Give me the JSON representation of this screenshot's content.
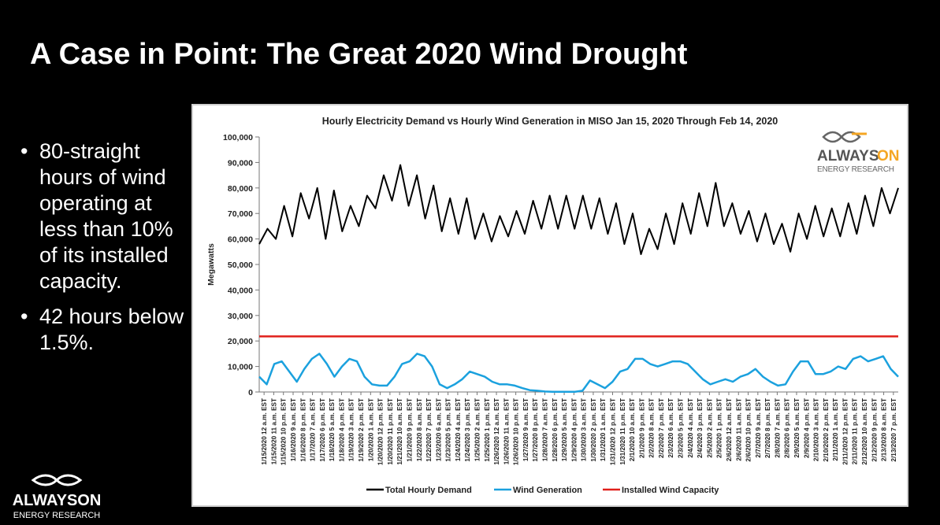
{
  "slide": {
    "title": "A Case in Point: The Great 2020 Wind Drought",
    "bullets": [
      "80-straight hours of wind operating at less than 10% of its installed capacity.",
      "42 hours below 1.5%."
    ]
  },
  "logo": {
    "name": "ALWAYSON",
    "name_left": "ALWAYS",
    "name_right": "ON",
    "subtitle": "ENERGY RESEARCH",
    "accent_color": "#f5a623"
  },
  "chart_data": {
    "type": "line",
    "title": "Hourly Electricity Demand vs Hourly Wind Generation in MISO Jan 15, 2020 Through Feb 14, 2020",
    "ylabel": "Megawatts",
    "xlabel": "",
    "ylim": [
      0,
      100000
    ],
    "y_ticks": [
      "0",
      "10,000",
      "20,000",
      "30,000",
      "40,000",
      "50,000",
      "60,000",
      "70,000",
      "80,000",
      "90,000",
      "100,000"
    ],
    "x_tick_labels": [
      "1/15/2020 12 a.m. EST",
      "1/15/2020 11 a.m. EST",
      "1/15/2020 10 p.m. EST",
      "1/16/2020 9 a.m. EST",
      "1/16/2020 8 p.m. EST",
      "1/17/2020 7 a.m. EST",
      "1/17/2020 6 p.m. EST",
      "1/18/2020 5 a.m. EST",
      "1/18/2020 4 p.m. EST",
      "1/19/2020 3 a.m. EST",
      "1/19/2020 2 p.m. EST",
      "1/20/2020 1 a.m. EST",
      "1/20/2020 12 p.m. EST",
      "1/20/2020 11 p.m. EST",
      "1/21/2020 10 a.m. EST",
      "1/21/2020 9 p.m. EST",
      "1/22/2020 8 a.m. EST",
      "1/22/2020 7 p.m. EST",
      "1/23/2020 6 a.m. EST",
      "1/23/2020 5 p.m. EST",
      "1/24/2020 4 a.m. EST",
      "1/24/2020 3 p.m. EST",
      "1/25/2020 2 a.m. EST",
      "1/25/2020 1 p.m. EST",
      "1/26/2020 12 a.m. EST",
      "1/26/2020 11 a.m. EST",
      "1/26/2020 10 p.m. EST",
      "1/27/2020 9 a.m. EST",
      "1/27/2020 8 p.m. EST",
      "1/28/2020 7 a.m. EST",
      "1/28/2020 6 p.m. EST",
      "1/29/2020 5 a.m. EST",
      "1/29/2020 4 p.m. EST",
      "1/30/2020 3 a.m. EST",
      "1/30/2020 2 p.m. EST",
      "1/31/2020 1 a.m. EST",
      "1/31/2020 12 p.m. EST",
      "1/31/2020 11 p.m. EST",
      "2/1/2020 10 a.m. EST",
      "2/1/2020 9 p.m. EST",
      "2/2/2020 8 a.m. EST",
      "2/2/2020 7 p.m. EST",
      "2/3/2020 6 a.m. EST",
      "2/3/2020 5 p.m. EST",
      "2/4/2020 4 a.m. EST",
      "2/4/2020 3 p.m. EST",
      "2/5/2020 2 a.m. EST",
      "2/5/2020 1 p.m. EST",
      "2/6/2020 12 a.m. EST",
      "2/6/2020 11 a.m. EST",
      "2/6/2020 10 p.m. EST",
      "2/7/2020 9 a.m. EST",
      "2/7/2020 8 p.m. EST",
      "2/8/2020 7 a.m. EST",
      "2/8/2020 6 p.m. EST",
      "2/9/2020 5 a.m. EST",
      "2/9/2020 4 p.m. EST",
      "2/10/2020 3 a.m. EST",
      "2/10/2020 2 p.m. EST",
      "2/11/2020 1 a.m. EST",
      "2/11/2020 12 p.m. EST",
      "2/11/2020 11 p.m. EST",
      "2/12/2020 10 a.m. EST",
      "2/12/2020 9 p.m. EST",
      "2/13/2020 8 a.m. EST",
      "2/13/2020 7 p.m. EST"
    ],
    "series": [
      {
        "name": "Total Hourly Demand",
        "color": "#000000",
        "peaks": [
          64000,
          73000,
          78000,
          80000,
          79000,
          73000,
          77000,
          85000,
          89000,
          85000,
          81000,
          76000,
          76000,
          70000,
          69000,
          71000,
          75000,
          77000,
          77000,
          77000,
          76000,
          74000,
          70000,
          64000,
          70000,
          74000,
          78000,
          82000,
          74000,
          71000,
          70000,
          66000,
          70000,
          73000,
          72000,
          74000,
          77000,
          80000,
          80000
        ],
        "troughs": [
          58000,
          60000,
          61000,
          68000,
          60000,
          63000,
          65000,
          72000,
          75000,
          73000,
          68000,
          63000,
          62000,
          60000,
          59000,
          61000,
          62000,
          64000,
          64000,
          64000,
          64000,
          62000,
          58000,
          54000,
          56000,
          58000,
          62000,
          65000,
          65000,
          62000,
          59000,
          58000,
          55000,
          60000,
          61000,
          61000,
          62000,
          65000,
          70000
        ]
      },
      {
        "name": "Wind Generation",
        "color": "#1ba1de",
        "values": [
          6000,
          3000,
          11000,
          12000,
          8000,
          4000,
          9000,
          13000,
          15000,
          11000,
          6000,
          10000,
          13000,
          12000,
          6000,
          3000,
          2500,
          2500,
          6000,
          11000,
          12000,
          15000,
          14000,
          10000,
          3000,
          1500,
          3000,
          5000,
          8000,
          7000,
          6000,
          4000,
          3000,
          3000,
          2500,
          1500,
          700,
          500,
          200,
          100,
          100,
          100,
          100,
          500,
          4500,
          3000,
          1500,
          4000,
          8000,
          9000,
          13000,
          13000,
          11000,
          10000,
          11000,
          12000,
          12000,
          11000,
          8000,
          5000,
          3000,
          4000,
          5000,
          4000,
          6000,
          7000,
          9000,
          6000,
          4000,
          2500,
          3000,
          8000,
          12000,
          12000,
          7000,
          7000,
          8000,
          10000,
          9000,
          13000,
          14000,
          12000,
          13000,
          14000,
          9000,
          6000
        ]
      },
      {
        "name": "Installed Wind Capacity",
        "color": "#e0201b",
        "values": [
          21800,
          21800
        ]
      }
    ],
    "legend": "bottom",
    "grid": true
  }
}
